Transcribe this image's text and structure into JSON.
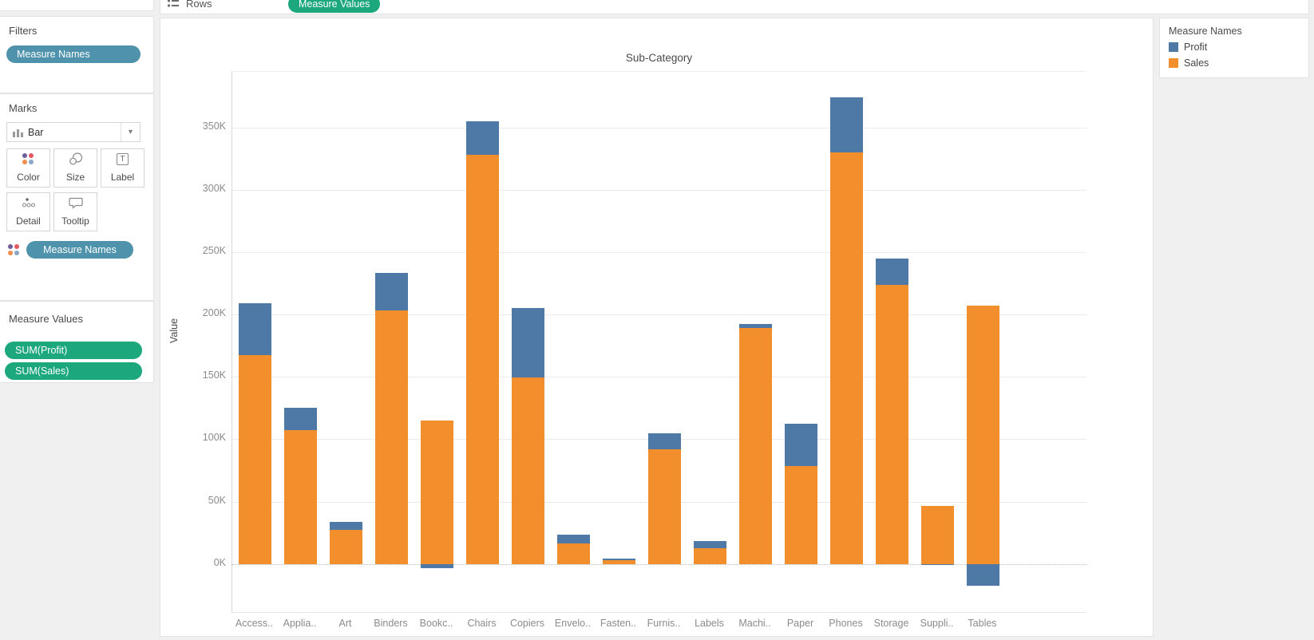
{
  "top_shelf": {
    "rows_label": "Rows",
    "pill": "Measure Values"
  },
  "sidebar": {
    "filters": {
      "title": "Filters",
      "pills": [
        "Measure Names"
      ]
    },
    "marks": {
      "title": "Marks",
      "mark_type": "Bar",
      "buttons": [
        {
          "label": "Color"
        },
        {
          "label": "Size"
        },
        {
          "label": "Label"
        },
        {
          "label": "Detail"
        },
        {
          "label": "Tooltip"
        }
      ],
      "pill": "Measure Names"
    },
    "measure_values": {
      "title": "Measure Values",
      "pills": [
        "SUM(Profit)",
        "SUM(Sales)"
      ]
    }
  },
  "legend": {
    "title": "Measure Names",
    "items": [
      {
        "label": "Profit",
        "color": "#4e79a7"
      },
      {
        "label": "Sales",
        "color": "#f28e2b"
      }
    ]
  },
  "chart_data": {
    "type": "bar",
    "stacked": true,
    "title": "Sub-Category",
    "xlabel": "Sub-Category",
    "ylabel": "Value",
    "units": "K (thousands)",
    "grid": true,
    "legend_position": "right",
    "categories": [
      "Access..",
      "Applia..",
      "Art",
      "Binders",
      "Bookc..",
      "Chairs",
      "Copiers",
      "Envelo..",
      "Fasten..",
      "Furnis..",
      "Labels",
      "Machi..",
      "Paper",
      "Phones",
      "Storage",
      "Suppli..",
      "Tables"
    ],
    "series": [
      {
        "name": "Profit",
        "color": "#4e79a7",
        "values": [
          41.9,
          18.1,
          6.5,
          30.2,
          -3.5,
          26.6,
          55.6,
          7.0,
          1.0,
          13.1,
          5.5,
          3.4,
          34.1,
          44.5,
          21.3,
          -1.2,
          -17.7
        ]
      },
      {
        "name": "Sales",
        "color": "#f28e2b",
        "values": [
          167.4,
          107.5,
          27.1,
          203.4,
          114.9,
          328.4,
          149.5,
          16.5,
          3.0,
          91.7,
          12.5,
          189.2,
          78.5,
          330.0,
          223.8,
          46.7,
          207.0
        ]
      }
    ],
    "y_ticks": [
      0,
      50,
      100,
      150,
      200,
      250,
      300,
      350
    ],
    "y_tick_labels": [
      "0K",
      "50K",
      "100K",
      "150K",
      "200K",
      "250K",
      "300K",
      "350K"
    ],
    "ylim": [
      -40,
      395
    ]
  }
}
